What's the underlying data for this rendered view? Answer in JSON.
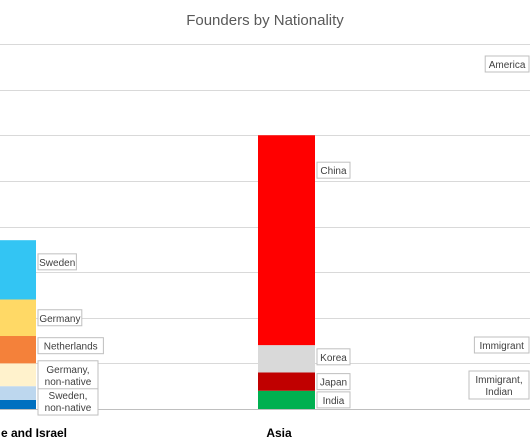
{
  "chart_data": {
    "type": "bar",
    "stacked": true,
    "title": "Founders by Nationality",
    "categories": [
      "e and Israel",
      "Asia",
      ""
    ],
    "ylim": [
      0,
      8
    ],
    "grid": true,
    "series": [
      {
        "name": "",
        "category": "e and Israel",
        "label": "",
        "value": 0.2,
        "color": "#0070C0"
      },
      {
        "name": "",
        "category": "e and Israel",
        "label": "Sweden, non-native",
        "value": 0.3,
        "color": "#BDD7EE"
      },
      {
        "name": "",
        "category": "e and Israel",
        "label": "Germany, non-native",
        "value": 0.5,
        "color": "#FFF2CC"
      },
      {
        "name": "",
        "category": "e and Israel",
        "label": "Netherlands",
        "value": 0.6,
        "color": "#F4813A"
      },
      {
        "name": "",
        "category": "e and Israel",
        "label": "Germany",
        "value": 0.8,
        "color": "#FFD966"
      },
      {
        "name": "",
        "category": "e and Israel",
        "label": "Sweden",
        "value": 1.3,
        "color": "#33C5F3"
      },
      {
        "name": "",
        "category": "Asia",
        "label": "India",
        "value": 0.4,
        "color": "#00B050"
      },
      {
        "name": "",
        "category": "Asia",
        "label": "Japan",
        "value": 0.4,
        "color": "#C00000"
      },
      {
        "name": "",
        "category": "Asia",
        "label": "Korea",
        "value": 0.6,
        "color": "#D9D9D9"
      },
      {
        "name": "",
        "category": "Asia",
        "label": "China",
        "value": 4.6,
        "color": "#FF0000"
      }
    ],
    "side_labels": [
      "America",
      "Immigrant",
      "Immigrant, Indian"
    ]
  }
}
